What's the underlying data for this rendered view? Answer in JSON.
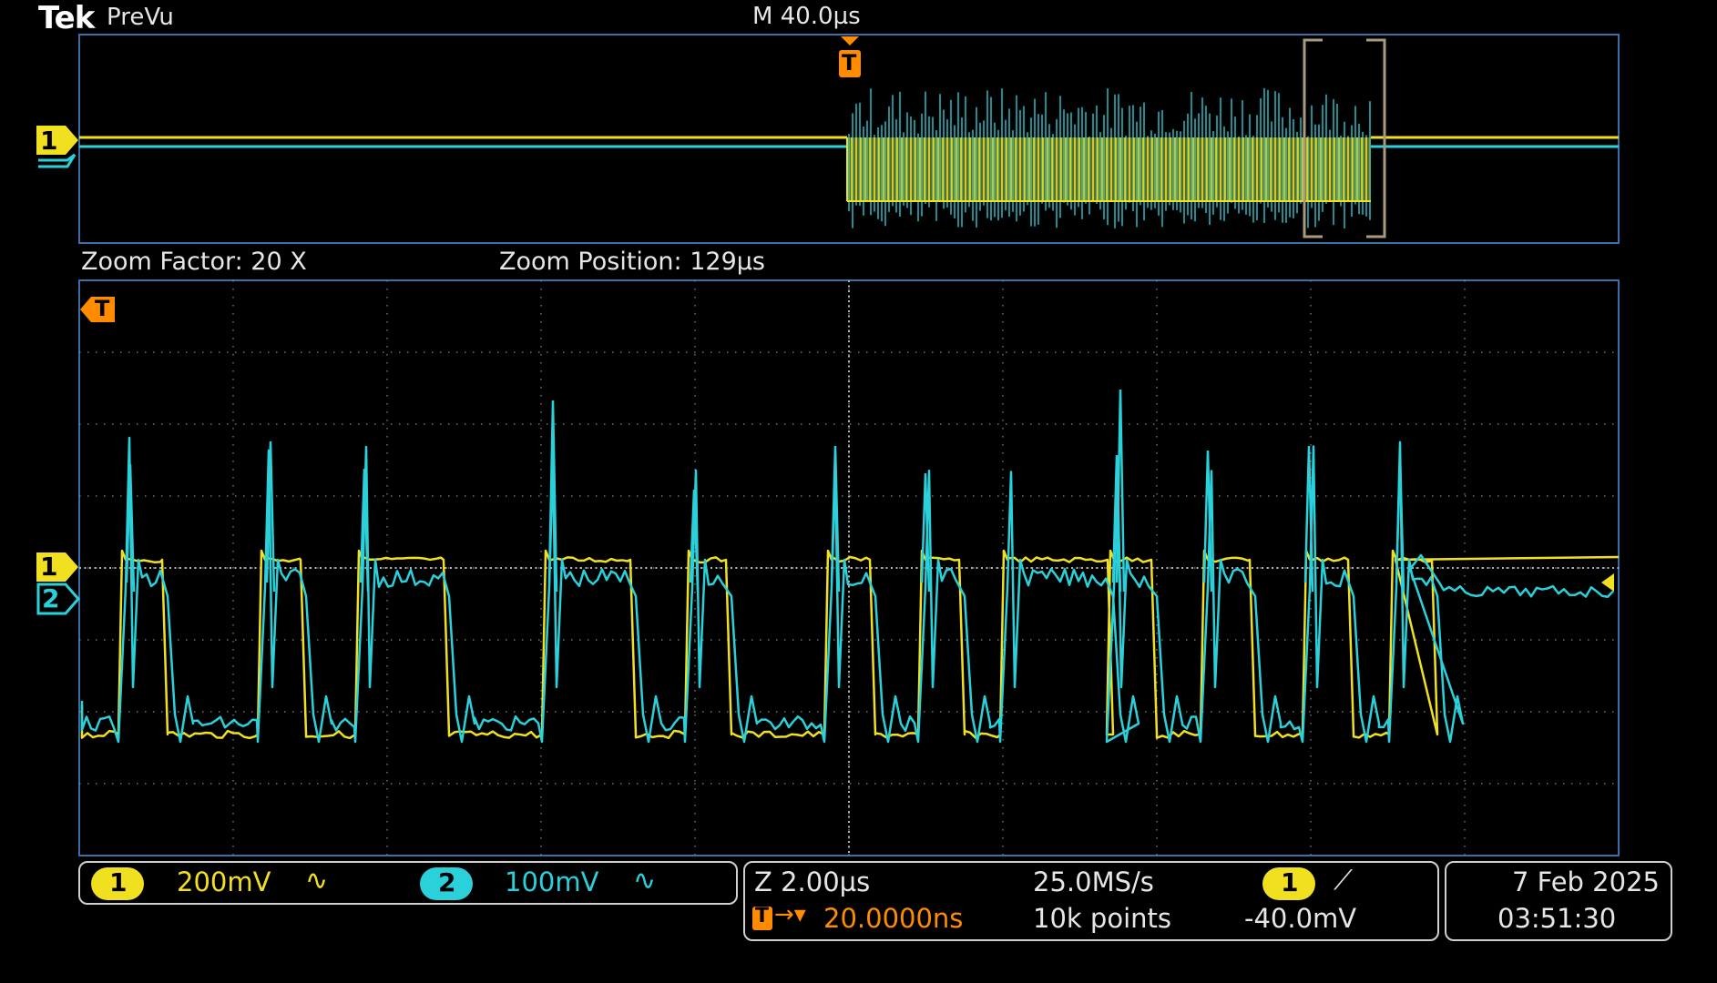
{
  "header": {
    "brand": "Tek",
    "mode": "PreVu",
    "horizontal_scale": "M 40.0µs"
  },
  "overview": {
    "channel1_marker": "1",
    "trigger_marker": "T"
  },
  "zoom": {
    "factor_label": "Zoom Factor: 20 X",
    "position_label": "Zoom Position: 129µs",
    "trigger_marker": "T",
    "ch1_marker": "1",
    "ch2_marker": "2"
  },
  "channels": [
    {
      "num": "1",
      "scale": "200mV",
      "coupling_icon": "ac-wave-icon",
      "color": "#f0e020"
    },
    {
      "num": "2",
      "scale": "100mV",
      "coupling_icon": "ac-wave-icon",
      "color": "#2ad0da"
    }
  ],
  "acquisition": {
    "zoom_scale": "Z 2.00µs",
    "trigger_delay": "20.0000ns",
    "sample_rate": "25.0MS/s",
    "record_length": "10k points",
    "trigger_source": "1",
    "trigger_slope_icon": "rising-edge-icon",
    "trigger_level": "-40.0mV"
  },
  "datetime": {
    "date": "7 Feb  2025",
    "time": "03:51:30"
  },
  "colors": {
    "ch1": "#f0e020",
    "ch2": "#2ad0da",
    "trigger": "#ff8c00",
    "grid": "#8a8a8a",
    "frame": "#3a6fa8"
  }
}
